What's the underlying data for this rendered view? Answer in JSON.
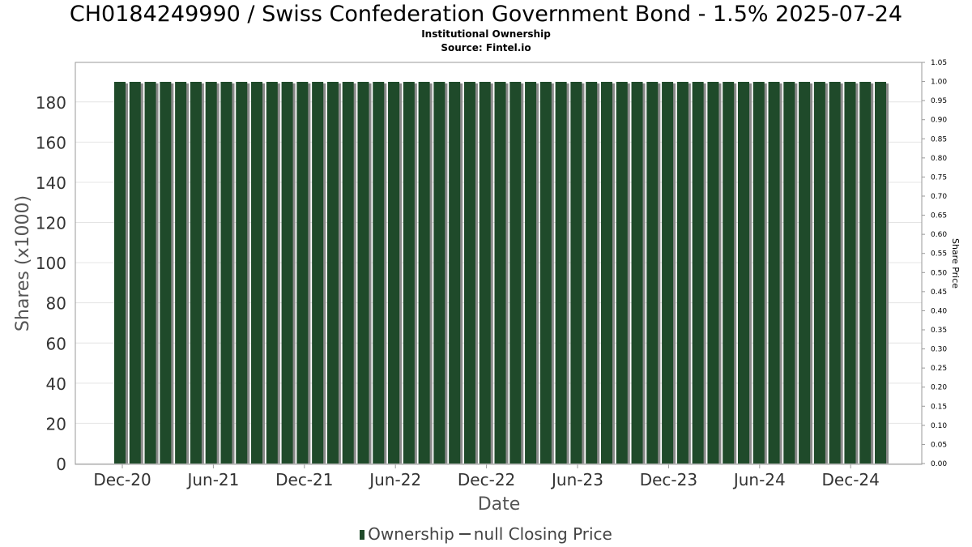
{
  "title": "CH0184249990 / Swiss Confederation Government Bond - 1.5% 2025-07-24",
  "subtitle_1": "Institutional Ownership",
  "subtitle_2": "Source: Fintel.io",
  "legend": {
    "ownership_label": "Ownership",
    "price_label": "null Closing Price"
  },
  "colors": {
    "bar": "#1f4a2a",
    "bar_shadow": "#8a8a8a",
    "grid": "#e4e4e4"
  },
  "chart_data": {
    "type": "bar",
    "xlabel": "Date",
    "ylabel": "Shares (x1000)",
    "y2label": "Share Price",
    "ylim": [
      0,
      190
    ],
    "y_ticks": [
      0,
      20,
      40,
      60,
      80,
      100,
      120,
      140,
      160,
      180
    ],
    "y2lim": [
      0,
      1.05
    ],
    "y2_ticks": [
      "0.00",
      "0.05",
      "0.10",
      "0.15",
      "0.20",
      "0.25",
      "0.30",
      "0.35",
      "0.40",
      "0.45",
      "0.50",
      "0.55",
      "0.60",
      "0.65",
      "0.70",
      "0.75",
      "0.80",
      "0.85",
      "0.90",
      "0.95",
      "1.00",
      "1.05"
    ],
    "x_ticks": [
      "Dec-20",
      "Jun-21",
      "Dec-21",
      "Jun-22",
      "Dec-22",
      "Jun-23",
      "Dec-23",
      "Jun-24",
      "Dec-24"
    ],
    "grid": true,
    "legend_position": "bottom",
    "series": [
      {
        "name": "Ownership",
        "count": 51,
        "value": 190
      }
    ]
  }
}
